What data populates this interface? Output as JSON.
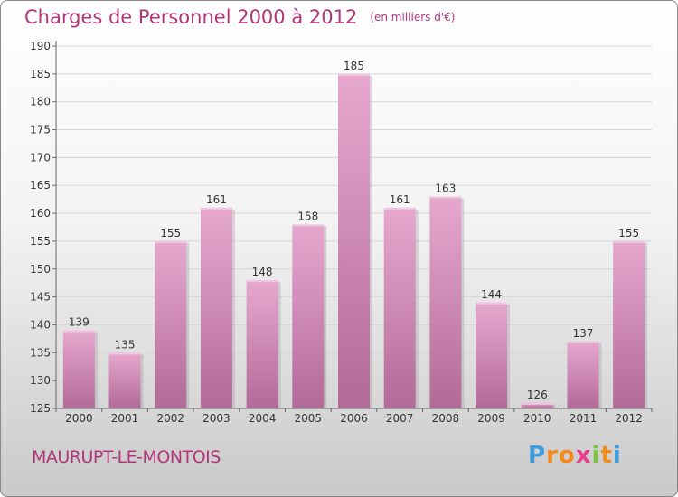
{
  "title": "Charges de Personnel 2000 à 2012",
  "unit_label": "(en milliers d'€)",
  "commune": "MAURUPT-LE-MONTOIS",
  "logo": {
    "letters": [
      "P",
      "r",
      "o",
      "x",
      "i",
      "t",
      "i"
    ],
    "colors": [
      "#3a9de0",
      "#f28a1e",
      "#f28a1e",
      "#e83e8c",
      "#7fc241",
      "#f28a1e",
      "#3a9de0"
    ]
  },
  "colors": {
    "accent": "#b0367a",
    "bar_top": "#e6a8cf",
    "bar_bottom": "#b26a98"
  },
  "chart_data": {
    "type": "bar",
    "categories": [
      "2000",
      "2001",
      "2002",
      "2003",
      "2004",
      "2005",
      "2006",
      "2007",
      "2008",
      "2009",
      "2010",
      "2011",
      "2012"
    ],
    "values": [
      139,
      135,
      155,
      161,
      148,
      158,
      185,
      161,
      163,
      144,
      126,
      137,
      155
    ],
    "ylim": [
      125,
      190
    ],
    "yticks": [
      125,
      130,
      135,
      140,
      145,
      150,
      155,
      160,
      165,
      170,
      175,
      180,
      185,
      190
    ],
    "grid": true
  }
}
